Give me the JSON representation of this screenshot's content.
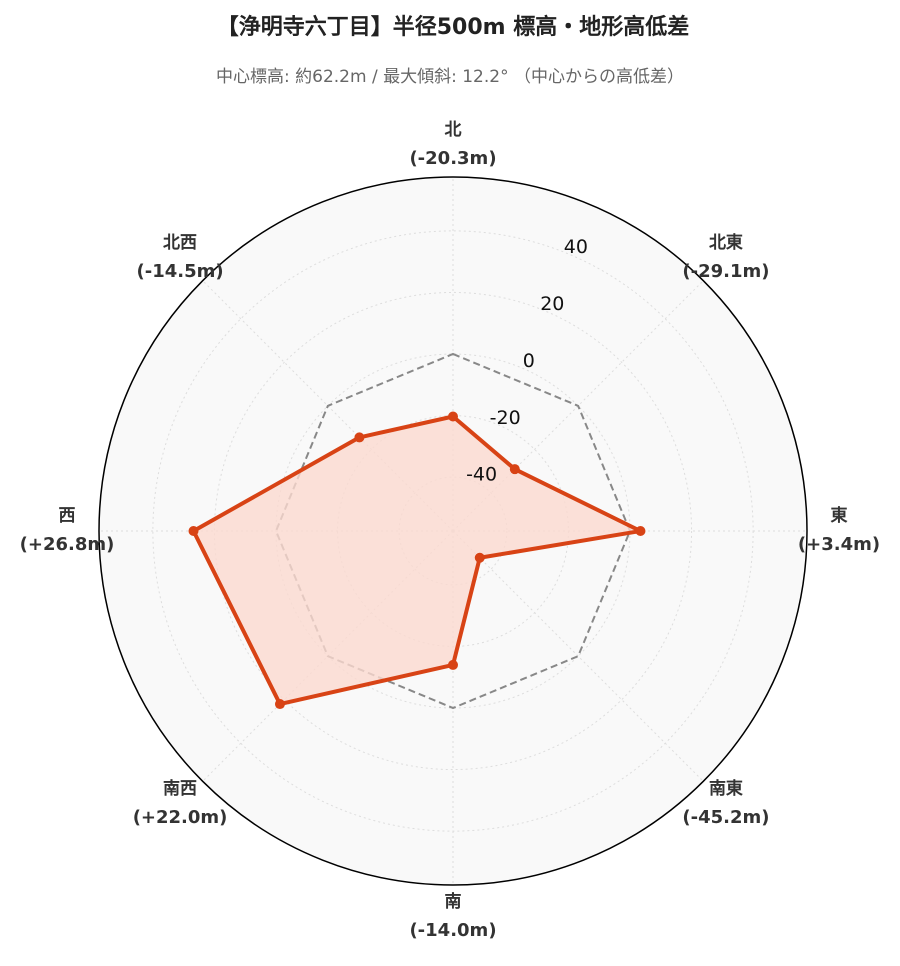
{
  "chart_data": {
    "type": "radar",
    "title": "【浄明寺六丁目】半径500m 標高・地形高低差",
    "subtitle": "中心標高: 約62.2m / 最大傾斜: 12.2° （中心からの高低差）",
    "categories": [
      "北",
      "北東",
      "東",
      "南東",
      "南",
      "南西",
      "西",
      "北西"
    ],
    "values": [
      -20.3,
      -29.1,
      3.4,
      -45.2,
      -14.0,
      22.0,
      26.8,
      -14.5
    ],
    "value_labels": [
      "(-20.3m)",
      "(-29.1m)",
      "(+3.4m)",
      "(-45.2m)",
      "(-14.0m)",
      "(+22.0m)",
      "(+26.8m)",
      "(-14.5m)"
    ],
    "color": "#d84315",
    "fill_color": "#fbd9cf",
    "reference_value": 0,
    "reference_color": "#888888",
    "ylim": [
      -57.5,
      57.5
    ],
    "yticks": [
      -40,
      -20,
      0,
      20,
      40
    ],
    "grid": true
  }
}
